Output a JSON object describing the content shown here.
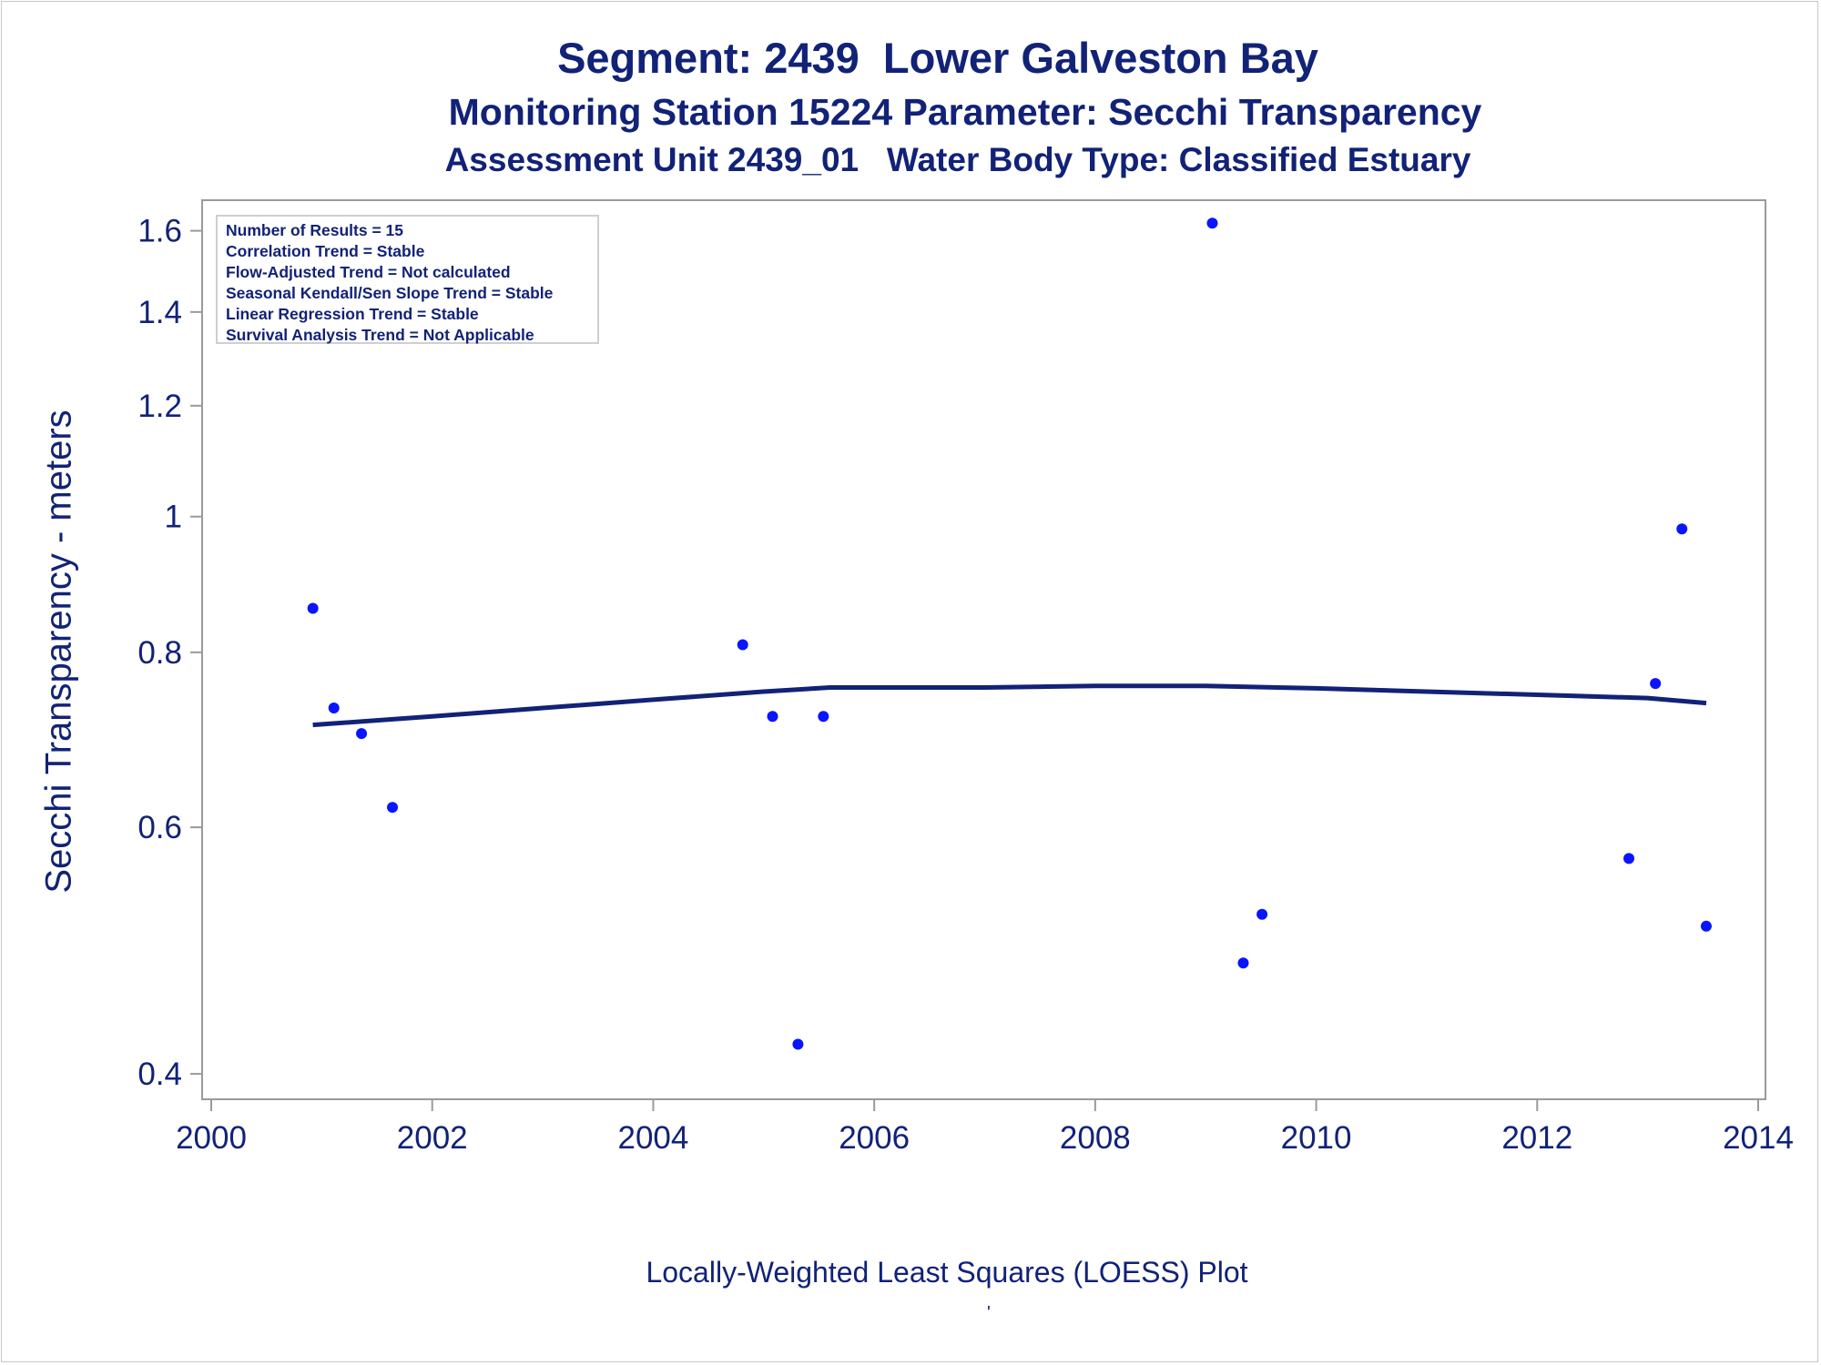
{
  "chart_data": {
    "type": "scatter",
    "title": "Segment: 2439  Lower Galveston Bay",
    "subtitle_1": "Monitoring Station 15224 Parameter: Secchi Transparency",
    "subtitle_2": "Assessment Unit 2439_01   Water Body Type: Classified Estuary",
    "xlabel": "",
    "ylabel": "Secchi Transparency - meters",
    "footnote": "Locally-Weighted Least Squares (LOESS) Plot",
    "footnote_mark": "'",
    "xlim": [
      2000,
      2014
    ],
    "ylim": [
      0.39,
      1.66
    ],
    "yscale": "log",
    "x_ticks": [
      "2000",
      "2002",
      "2004",
      "2006",
      "2008",
      "2010",
      "2012",
      "2014"
    ],
    "y_ticks": [
      "0.4",
      "0.6",
      "0.8",
      "1",
      "1.2",
      "1.4",
      "1.6"
    ],
    "legend_placement": "top-left",
    "legend_lines": [
      "Number of Results = 15",
      "Correlation Trend = Stable",
      "Flow-Adjusted Trend = Not calculated",
      "Seasonal Kendall/Sen Slope Trend = Stable",
      "Linear Regression Trend = Stable",
      "Survival Analysis Trend = Not Applicable"
    ],
    "series": [
      {
        "type": "scatter",
        "points": [
          [
            2000.92,
            0.86
          ],
          [
            2001.11,
            0.73
          ],
          [
            2001.36,
            0.7
          ],
          [
            2001.64,
            0.62
          ],
          [
            2004.81,
            0.81
          ],
          [
            2005.08,
            0.72
          ],
          [
            2005.31,
            0.42
          ],
          [
            2005.54,
            0.72
          ],
          [
            2009.06,
            1.62
          ],
          [
            2009.34,
            0.48
          ],
          [
            2009.51,
            0.52
          ],
          [
            2012.83,
            0.57
          ],
          [
            2013.07,
            0.76
          ],
          [
            2013.31,
            0.98
          ],
          [
            2013.53,
            0.51
          ]
        ]
      },
      {
        "type": "line",
        "points": [
          [
            2000.92,
            0.71
          ],
          [
            2002.0,
            0.72
          ],
          [
            2003.0,
            0.73
          ],
          [
            2004.0,
            0.74
          ],
          [
            2005.0,
            0.75
          ],
          [
            2005.6,
            0.755
          ],
          [
            2007.0,
            0.755
          ],
          [
            2008.0,
            0.757
          ],
          [
            2009.0,
            0.757
          ],
          [
            2010.0,
            0.754
          ],
          [
            2011.0,
            0.75
          ],
          [
            2012.0,
            0.746
          ],
          [
            2013.0,
            0.742
          ],
          [
            2013.53,
            0.736
          ]
        ]
      }
    ],
    "colors": {
      "points": "#0a14ff",
      "loess_line": "#112277",
      "text": "#112277",
      "axis": "#9a9a9a"
    }
  }
}
